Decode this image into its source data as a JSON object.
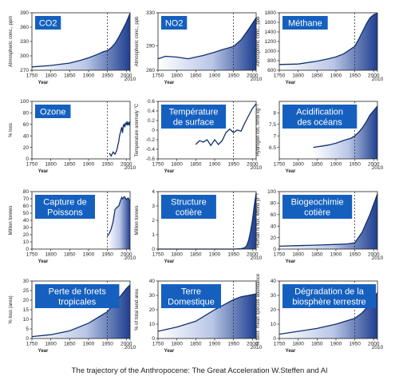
{
  "caption": "The trajectory of the Anthropocene: The Great Acceleration W.Steffen and Al",
  "colors": {
    "area_light": "#ffffff",
    "area_dark": "#1f3f8f",
    "title_box": "#1560bf",
    "line": "#10306f"
  },
  "chart_data": [
    {
      "type": "area",
      "title": [
        "CO2"
      ],
      "ylabel": "Atmospheric conc., ppm",
      "xlabel": "Year",
      "xlim": [
        1750,
        2010
      ],
      "ylim": [
        270,
        390
      ],
      "yticks": [
        270,
        300,
        330,
        360,
        390
      ],
      "xticks": [
        1750,
        1800,
        1850,
        1900,
        1950,
        2000,
        2010
      ],
      "ref_x": 1950,
      "x": [
        1750,
        1800,
        1850,
        1880,
        1900,
        1920,
        1940,
        1950,
        1960,
        1970,
        1980,
        1990,
        2000,
        2010
      ],
      "y": [
        277,
        280,
        285,
        291,
        296,
        302,
        309,
        311,
        317,
        326,
        339,
        354,
        370,
        389
      ]
    },
    {
      "type": "area",
      "title": [
        "NO2"
      ],
      "ylabel": "Atmospheric conc., ppb",
      "xlabel": "Year",
      "xlim": [
        1750,
        2010
      ],
      "ylim": [
        260,
        330
      ],
      "yticks": [
        260,
        290,
        330
      ],
      "xticks": [
        1750,
        1800,
        1850,
        1900,
        1950,
        2000,
        2010
      ],
      "ref_x": 1950,
      "x": [
        1750,
        1770,
        1800,
        1830,
        1850,
        1870,
        1900,
        1920,
        1950,
        1970,
        1990,
        2010
      ],
      "y": [
        274,
        277,
        276,
        274,
        276,
        278,
        282,
        285,
        289,
        297,
        310,
        324
      ]
    },
    {
      "type": "area",
      "title": [
        "Méthane"
      ],
      "ylabel": "Atmospheric conc., ppb",
      "xlabel": "Year",
      "xlim": [
        1750,
        2010
      ],
      "ylim": [
        600,
        1800
      ],
      "yticks": [
        600,
        800,
        1000,
        1200,
        1400,
        1600,
        1800
      ],
      "xticks": [
        1750,
        1800,
        1850,
        1900,
        1950,
        2000,
        2010
      ],
      "ref_x": 1950,
      "x": [
        1750,
        1800,
        1850,
        1880,
        1900,
        1920,
        1950,
        1960,
        1970,
        1980,
        1990,
        2000,
        2010
      ],
      "y": [
        720,
        730,
        790,
        840,
        880,
        940,
        1100,
        1240,
        1400,
        1560,
        1690,
        1760,
        1790
      ]
    },
    {
      "type": "line",
      "title": [
        "Ozone"
      ],
      "ylabel": "% loss",
      "xlabel": "Year",
      "xlim": [
        1750,
        2010
      ],
      "ylim": [
        0,
        100
      ],
      "yticks": [
        0,
        20,
        40,
        60,
        80,
        100
      ],
      "xticks": [
        1750,
        1800,
        1850,
        1900,
        1950,
        2000,
        2010
      ],
      "ref_x": 1950,
      "x": [
        1955,
        1960,
        1965,
        1970,
        1975,
        1978,
        1980,
        1982,
        1984,
        1986,
        1988,
        1990,
        1992,
        1994,
        1996,
        1998,
        2000,
        2002,
        2004,
        2006,
        2008,
        2010
      ],
      "y": [
        10,
        5,
        12,
        8,
        15,
        25,
        30,
        40,
        45,
        50,
        55,
        45,
        58,
        60,
        55,
        62,
        60,
        65,
        58,
        63,
        60,
        65
      ]
    },
    {
      "type": "line",
      "title": [
        "Température",
        "de surface"
      ],
      "ylabel": "Temperature anomaly °C",
      "xlabel": "Year",
      "xlim": [
        1750,
        2010
      ],
      "ylim": [
        -0.6,
        0.6
      ],
      "yticks": [
        -0.6,
        -0.4,
        -0.2,
        0.0,
        0.2,
        0.4,
        0.6
      ],
      "xticks": [
        1750,
        1800,
        1850,
        1900,
        1950,
        2000,
        2010
      ],
      "ref_x": 1950,
      "x": [
        1850,
        1860,
        1870,
        1880,
        1890,
        1900,
        1910,
        1920,
        1930,
        1940,
        1950,
        1960,
        1970,
        1980,
        1990,
        2000,
        2010
      ],
      "y": [
        -0.3,
        -0.22,
        -0.25,
        -0.2,
        -0.32,
        -0.2,
        -0.3,
        -0.22,
        -0.05,
        0.02,
        -0.05,
        0.0,
        -0.02,
        0.15,
        0.3,
        0.45,
        0.55
      ]
    },
    {
      "type": "area",
      "title": [
        "Acidification",
        "des océans"
      ],
      "ylabel": "Hydrogen ion, nmol kg⁻¹",
      "xlabel": "Year",
      "xlim": [
        1750,
        2010
      ],
      "ylim": [
        6.0,
        8.5
      ],
      "yticks": [
        6.5,
        7.0,
        7.5,
        8.0
      ],
      "xticks": [
        1750,
        1800,
        1850,
        1900,
        1950,
        2000,
        2010
      ],
      "ref_x": 1950,
      "x": [
        1840,
        1860,
        1880,
        1900,
        1920,
        1940,
        1950,
        1960,
        1970,
        1980,
        1990,
        2000,
        2010
      ],
      "y": [
        6.5,
        6.55,
        6.6,
        6.68,
        6.8,
        6.9,
        7.0,
        7.15,
        7.35,
        7.6,
        7.9,
        8.1,
        8.3
      ]
    },
    {
      "type": "area",
      "title": [
        "Capture de",
        "Poissons"
      ],
      "ylabel": "Million tonnes",
      "xlabel": "Year",
      "xlim": [
        1750,
        2010
      ],
      "ylim": [
        0,
        80
      ],
      "yticks": [
        0,
        10,
        20,
        30,
        40,
        50,
        60,
        70,
        80
      ],
      "xticks": [
        1750,
        1800,
        1850,
        1900,
        1950,
        2000,
        2010
      ],
      "ref_x": 1950,
      "x": [
        1950,
        1955,
        1960,
        1965,
        1970,
        1975,
        1980,
        1985,
        1988,
        1990,
        1995,
        2000,
        2005,
        2010
      ],
      "y": [
        18,
        22,
        28,
        38,
        55,
        58,
        60,
        68,
        72,
        70,
        73,
        69,
        71,
        67
      ]
    },
    {
      "type": "area",
      "title": [
        "Structure",
        "cotière"
      ],
      "ylabel": "Million tonnes",
      "xlabel": "Year",
      "xlim": [
        1750,
        2010
      ],
      "ylim": [
        0,
        4
      ],
      "yticks": [
        0,
        1,
        2,
        3,
        4
      ],
      "xticks": [
        1750,
        1800,
        1850,
        1900,
        1950,
        2000,
        2010
      ],
      "ref_x": 1950,
      "x": [
        1750,
        1950,
        1970,
        1980,
        1985,
        1990,
        1995,
        2000,
        2005,
        2010
      ],
      "y": [
        0,
        0,
        0.03,
        0.1,
        0.25,
        0.6,
        1.2,
        2.0,
        3.0,
        3.9
      ]
    },
    {
      "type": "area",
      "title": [
        "Biogeochimie",
        "cotière"
      ],
      "ylabel": "Human N flux, Mtons yr⁻¹",
      "xlabel": "Year",
      "xlim": [
        1750,
        2010
      ],
      "ylim": [
        0,
        100
      ],
      "yticks": [
        0,
        20,
        40,
        60,
        80,
        100
      ],
      "xticks": [
        1750,
        1800,
        1850,
        1900,
        1950,
        2000,
        2010
      ],
      "ref_x": 1950,
      "x": [
        1750,
        1800,
        1850,
        1900,
        1930,
        1950,
        1970,
        1990,
        2010
      ],
      "y": [
        5,
        6,
        7,
        8,
        9,
        11,
        30,
        60,
        96
      ]
    },
    {
      "type": "area",
      "title": [
        "Perte de forets",
        "tropicales"
      ],
      "ylabel": "% loss (area)",
      "xlabel": "Year",
      "xlim": [
        1750,
        2010
      ],
      "ylim": [
        0,
        30
      ],
      "yticks": [
        0,
        5,
        10,
        15,
        20,
        25,
        30
      ],
      "xticks": [
        1750,
        1800,
        1850,
        1900,
        1950,
        2000,
        2010
      ],
      "ref_x": 1950,
      "x": [
        1750,
        1800,
        1850,
        1900,
        1950,
        1980,
        2000,
        2010
      ],
      "y": [
        1,
        2,
        4,
        8,
        14,
        21,
        26,
        28
      ]
    },
    {
      "type": "area",
      "title": [
        "Terre",
        "Domestique"
      ],
      "ylabel": "% of total land area",
      "xlabel": "Year",
      "xlim": [
        1750,
        2010
      ],
      "ylim": [
        0,
        40
      ],
      "yticks": [
        0,
        10,
        20,
        30,
        40
      ],
      "xticks": [
        1750,
        1800,
        1850,
        1900,
        1950,
        2000,
        2010
      ],
      "ref_x": 1950,
      "x": [
        1750,
        1800,
        1850,
        1900,
        1950,
        1970,
        1990,
        2010
      ],
      "y": [
        5,
        8,
        12,
        20,
        27,
        29,
        30,
        31
      ]
    },
    {
      "type": "area",
      "title": [
        "Dégradation de la",
        "biosphère terrestre"
      ],
      "ylabel": "% decr. mean species abundance",
      "xlabel": "Year",
      "xlim": [
        1750,
        2010
      ],
      "ylim": [
        0,
        40
      ],
      "yticks": [
        0,
        10,
        20,
        30,
        40
      ],
      "xticks": [
        1750,
        1800,
        1850,
        1900,
        1950,
        2000,
        2010
      ],
      "ref_x": 1950,
      "x": [
        1750,
        1800,
        1850,
        1900,
        1950,
        1970,
        1990,
        2000,
        2010
      ],
      "y": [
        3,
        5,
        7,
        10,
        14,
        18,
        24,
        28,
        32
      ]
    }
  ]
}
